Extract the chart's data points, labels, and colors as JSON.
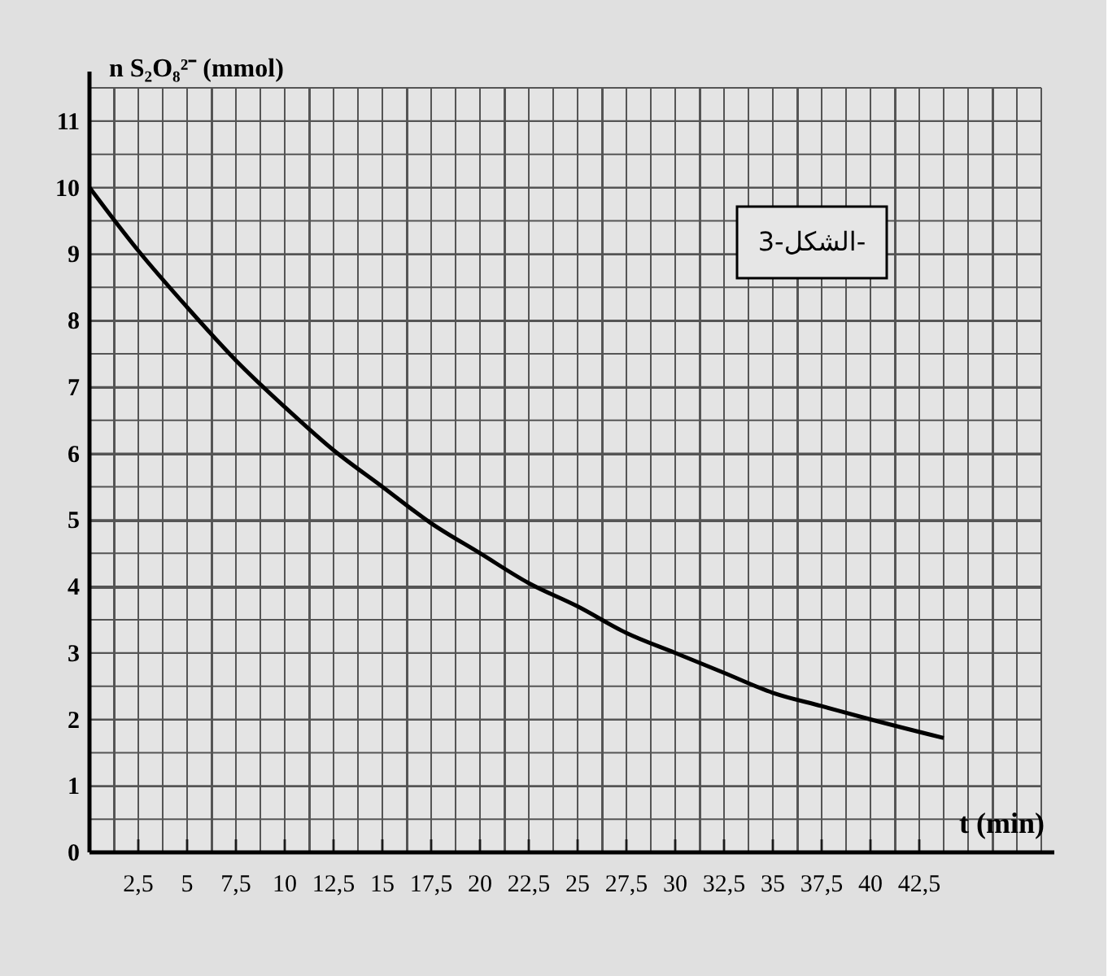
{
  "chart_data": {
    "type": "line",
    "xlabel": "t (min)",
    "ylabel": "n S₂O₈²⁻ (mmol)",
    "annotations": [
      "الشكل-3-"
    ],
    "x": [
      0,
      2.5,
      5,
      7.5,
      10,
      12.5,
      15,
      17.5,
      20,
      22.5,
      25,
      27.5,
      30,
      32.5,
      35,
      37.5,
      40,
      43.75
    ],
    "series": [
      {
        "color": "#000000",
        "values": [
          10,
          9.05,
          8.2,
          7.4,
          6.7,
          6.05,
          5.5,
          4.95,
          4.5,
          4.05,
          3.7,
          3.3,
          3.0,
          2.7,
          2.4,
          2.2,
          2.0,
          1.72
        ]
      }
    ],
    "xlim": [
      0,
      48.75
    ],
    "ylim": [
      0,
      11.5
    ],
    "xticks": [
      {
        "value": 1.25,
        "label": null
      },
      {
        "value": 2.5,
        "label": "2,5"
      },
      {
        "value": 3.75,
        "label": null
      },
      5,
      {
        "value": 6.25,
        "label": null
      },
      {
        "value": 7.5,
        "label": "7,5"
      },
      {
        "value": 8.75,
        "label": null
      },
      10,
      {
        "value": 11.25,
        "label": null
      },
      {
        "value": 12.5,
        "label": "12,5"
      },
      {
        "value": 13.75,
        "label": null
      },
      15,
      {
        "value": 16.25,
        "label": null
      },
      {
        "value": 17.5,
        "label": "17,5"
      },
      {
        "value": 18.75,
        "label": null
      },
      20,
      {
        "value": 21.25,
        "label": null
      },
      {
        "value": 22.5,
        "label": "22,5"
      },
      {
        "value": 23.75,
        "label": null
      },
      25,
      {
        "value": 26.25,
        "label": null
      },
      {
        "value": 27.5,
        "label": "27,5"
      },
      {
        "value": 28.75,
        "label": null
      },
      30,
      {
        "value": 31.25,
        "label": null
      },
      {
        "value": 32.5,
        "label": "32,5"
      },
      {
        "value": 33.75,
        "label": null
      },
      35,
      {
        "value": 36.25,
        "label": null
      },
      {
        "value": 37.5,
        "label": "37,5"
      },
      {
        "value": 38.75,
        "label": null
      },
      40,
      {
        "value": 41.25,
        "label": null
      },
      {
        "value": 42.5,
        "label": "42,5"
      },
      {
        "value": 43.75,
        "label": null
      },
      {
        "value": 45,
        "label": null
      },
      {
        "value": 46.25,
        "label": null
      },
      {
        "value": 47.5,
        "label": null
      },
      {
        "value": 48.75,
        "label": null
      }
    ],
    "yticks": [
      0,
      {
        "value": 0.5,
        "label": null
      },
      1,
      {
        "value": 1.5,
        "label": null
      },
      2,
      {
        "value": 2.5,
        "label": null
      },
      3,
      {
        "value": 3.5,
        "label": null
      },
      4,
      {
        "value": 4.5,
        "label": null
      },
      5,
      {
        "value": 5.5,
        "label": null
      },
      6,
      {
        "value": 6.5,
        "label": null
      },
      7,
      {
        "value": 7.5,
        "label": null
      },
      8,
      {
        "value": 8.5,
        "label": null
      },
      9,
      {
        "value": 9.5,
        "label": null
      },
      10,
      {
        "value": 10.5,
        "label": null
      },
      11,
      {
        "value": 11.5,
        "label": null
      }
    ],
    "grid": true,
    "marker": "none",
    "line_style": "solid"
  }
}
